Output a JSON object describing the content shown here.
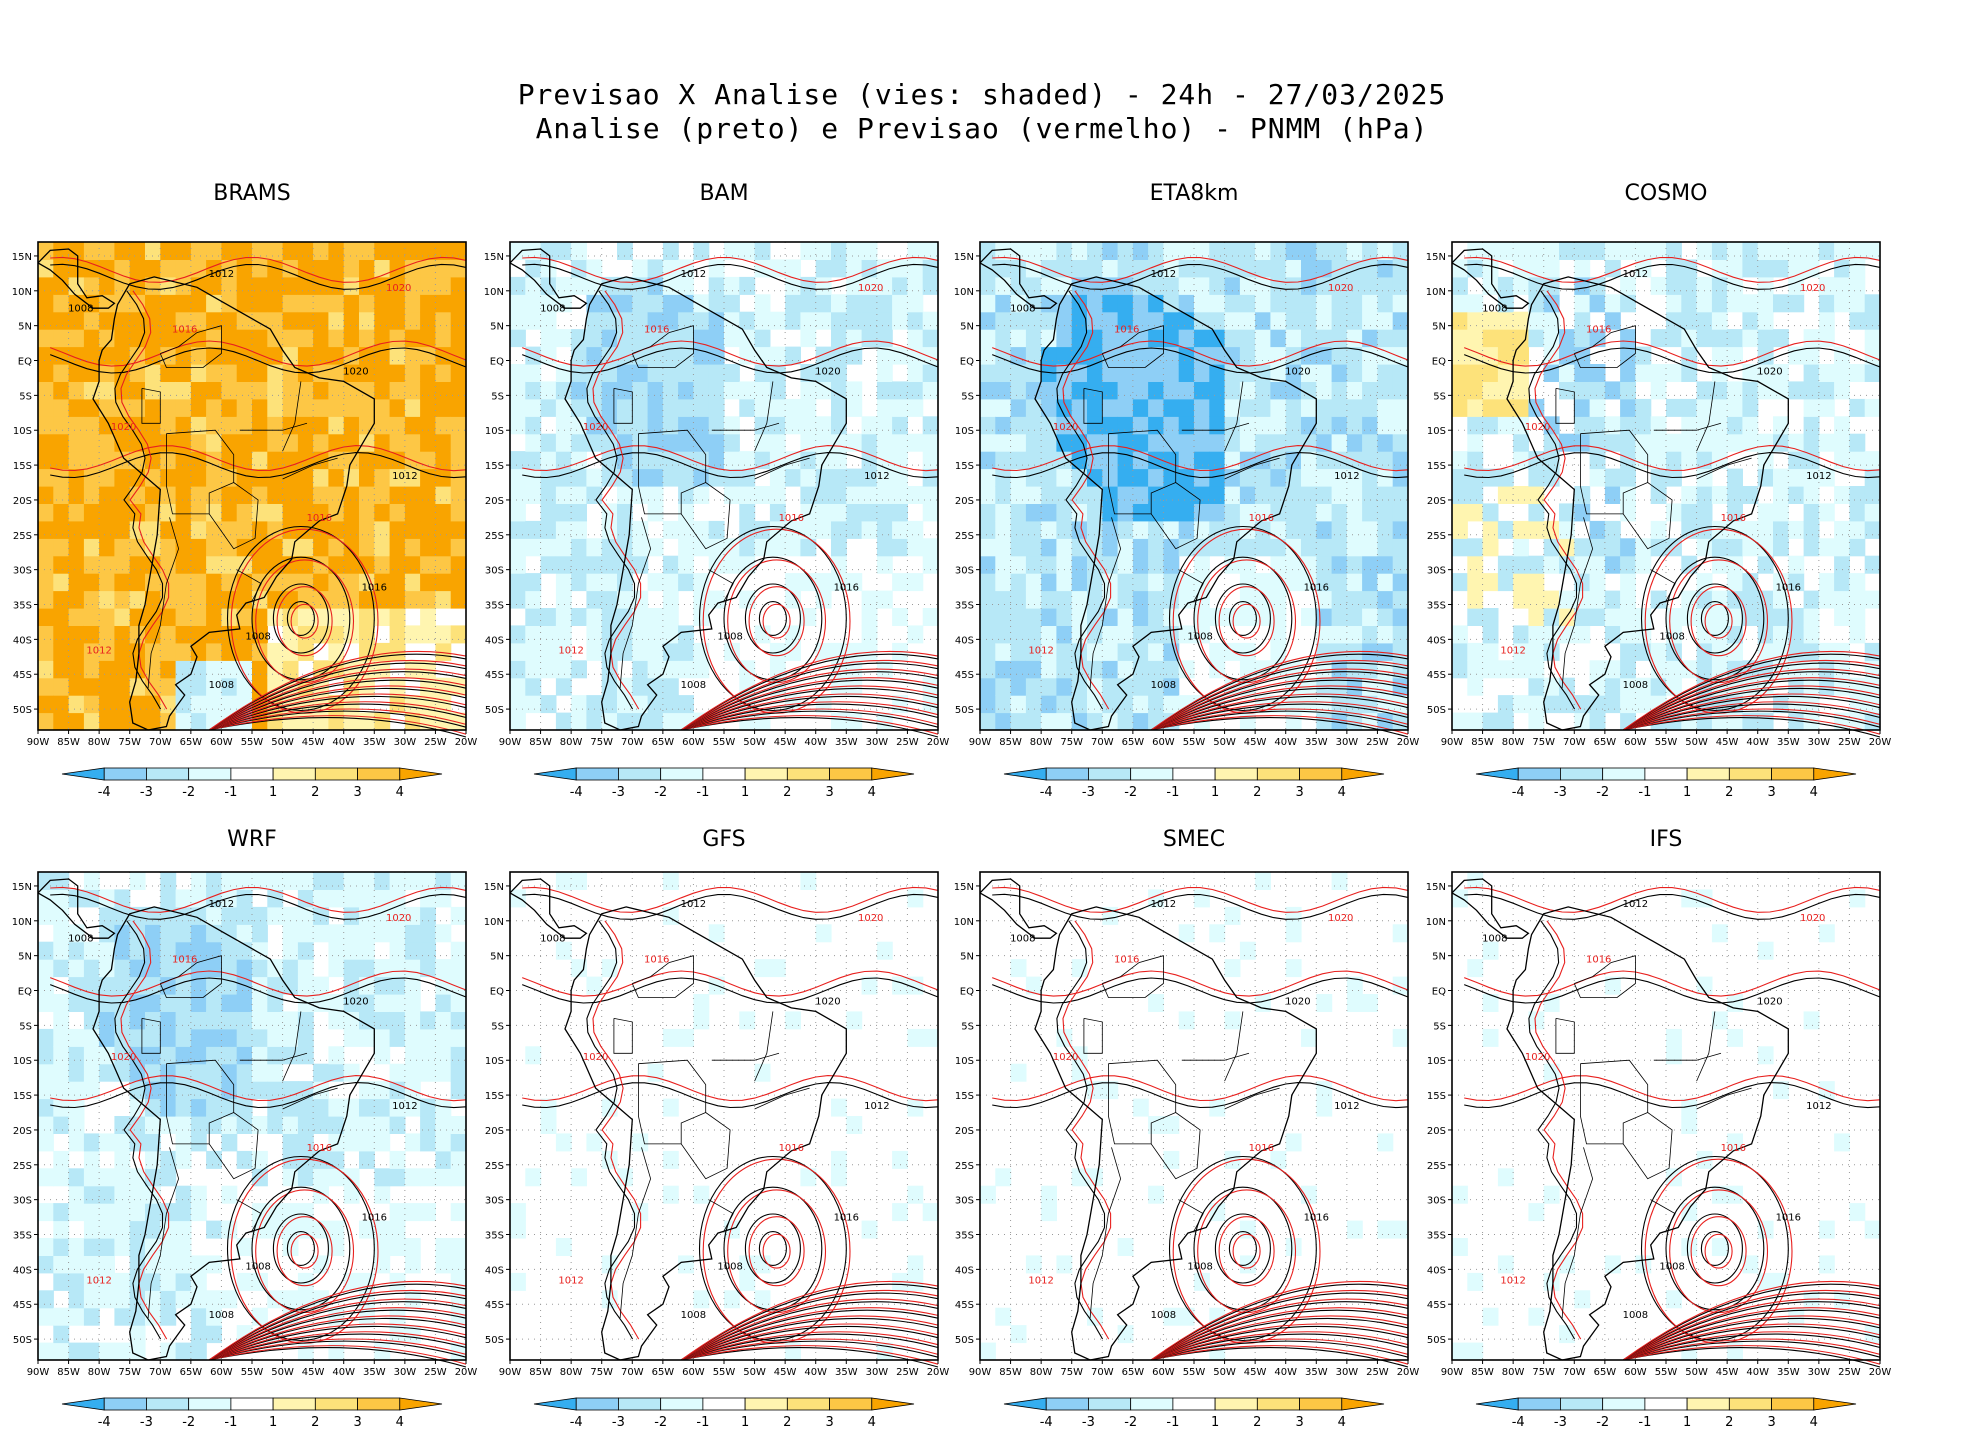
{
  "title": {
    "line1": "Previsao X Analise (vies: shaded) - 24h - 27/03/2025",
    "line2": "Analise (preto) e Previsao (vermelho) - PNMM (hPa)"
  },
  "chart_data": {
    "type": "heatmap",
    "variable": "PNMM (hPa)",
    "lead_time": "24h",
    "date": "27/03/2025",
    "x_ticks": [
      "90W",
      "85W",
      "80W",
      "75W",
      "70W",
      "65W",
      "60W",
      "55W",
      "50W",
      "45W",
      "40W",
      "35W",
      "30W",
      "25W",
      "20W"
    ],
    "y_ticks": [
      "15N",
      "10N",
      "5N",
      "EQ",
      "5S",
      "10S",
      "15S",
      "20S",
      "25S",
      "30S",
      "35S",
      "40S",
      "45S",
      "50S"
    ],
    "xlim": [
      -90,
      -20
    ],
    "ylim": [
      -53,
      17
    ],
    "colorbar": {
      "ticks": [
        "-4",
        "-3",
        "-2",
        "-1",
        "1",
        "2",
        "3",
        "4"
      ],
      "colors": [
        "#35aef0",
        "#8ecff6",
        "#b7e8f7",
        "#dffcfe",
        "#ffffff",
        "#fff5b0",
        "#fde27a",
        "#fdc745",
        "#f9a400"
      ]
    },
    "contour_legend": {
      "analysis": "preto",
      "forecast": "vermelho",
      "analysis_color": "#000000",
      "forecast_color": "#e8201e"
    },
    "panels": [
      {
        "name": "BRAMS",
        "bias": "warm",
        "labels": [
          "1012",
          "1008",
          "1016",
          "1020"
        ]
      },
      {
        "name": "BAM",
        "bias": "cold",
        "labels": [
          "1012",
          "1008",
          "1016",
          "1020"
        ]
      },
      {
        "name": "ETA8km",
        "bias": "cold-strong",
        "labels": [
          "1012",
          "1008",
          "1016",
          "1020"
        ]
      },
      {
        "name": "COSMO",
        "bias": "mixed",
        "labels": [
          "1012",
          "1008",
          "1016",
          "1020"
        ]
      },
      {
        "name": "WRF",
        "bias": "cold",
        "labels": [
          "1012",
          "1008",
          "1016",
          "1020"
        ]
      },
      {
        "name": "GFS",
        "bias": "neutral",
        "labels": [
          "1012",
          "1008",
          "1016",
          "1020"
        ]
      },
      {
        "name": "SMEC",
        "bias": "neutral",
        "labels": [
          "1012",
          "1008",
          "1016",
          "1020"
        ]
      },
      {
        "name": "IFS",
        "bias": "neutral",
        "labels": [
          "1012",
          "1008",
          "1016",
          "1020"
        ]
      }
    ]
  }
}
